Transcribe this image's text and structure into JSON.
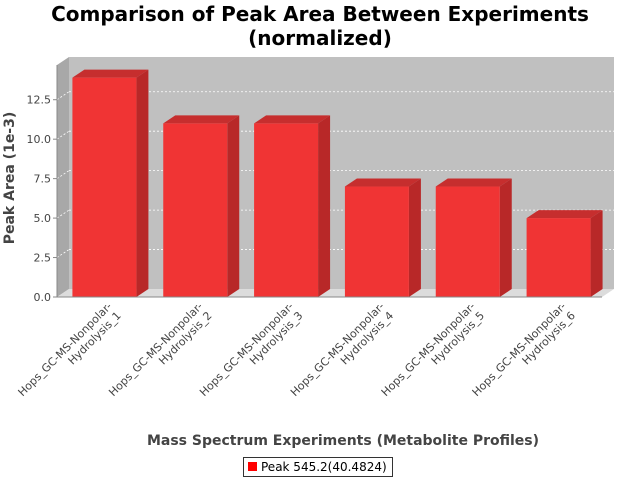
{
  "chart_data": {
    "type": "bar",
    "title": "Comparison of Peak Area Between Experiments (normalized)",
    "title_lines": [
      "Comparison of Peak Area Between Experiments",
      "(normalized)"
    ],
    "xlabel": "Mass Spectrum Experiments (Metabolite Profiles)",
    "ylabel": "Peak Area (1e-3)",
    "ylim": [
      0,
      14.7
    ],
    "yticks": [
      "0.0",
      "2.5",
      "5.0",
      "7.5",
      "10.0",
      "12.5"
    ],
    "categories": [
      "Hops_GC-MS-Nonpolar-Hydrolysis_1",
      "Hops_GC-MS-Nonpolar-Hydrolysis_2",
      "Hops_GC-MS-Nonpolar-Hydrolysis_3",
      "Hops_GC-MS-Nonpolar-Hydrolysis_4",
      "Hops_GC-MS-Nonpolar-Hydrolysis_5",
      "Hops_GC-MS-Nonpolar-Hydrolysis_6"
    ],
    "series": [
      {
        "name": "Peak 545.2(40.4824)",
        "values": [
          13.9,
          11.0,
          11.0,
          7.0,
          7.0,
          5.0
        ]
      }
    ],
    "legend": "bottom-center",
    "grid": true,
    "colors": {
      "bar_front": "#f03434",
      "bar_side": "#b82828",
      "bar_top": "#c62e2e",
      "plot_back": "#c0c0c0",
      "plot_floor": "#dcdcdc",
      "plot_wall": "#a8a8a8",
      "legend_swatch": "#ff0000"
    }
  }
}
